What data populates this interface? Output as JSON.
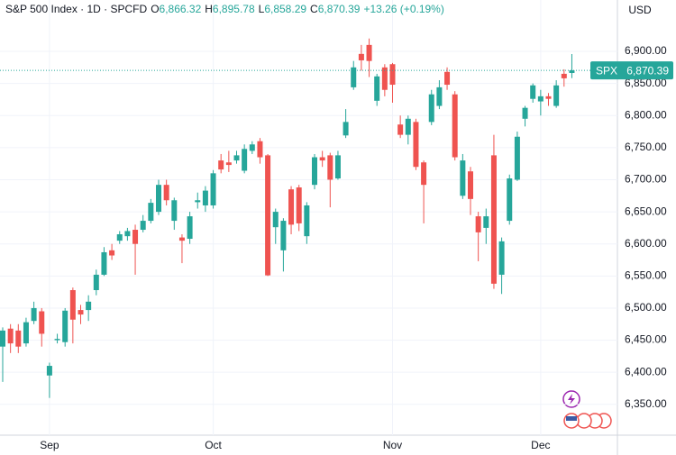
{
  "header": {
    "title": "S&P 500 Index · 1D · SPCFD",
    "fields": [
      {
        "key": "O",
        "value": "6,866.32"
      },
      {
        "key": "H",
        "value": "6,895.78"
      },
      {
        "key": "L",
        "value": "6,858.29"
      },
      {
        "key": "C",
        "value": "6,870.39"
      }
    ],
    "change": "+13.26 (+0.19%)"
  },
  "chart_data": {
    "type": "candlestick",
    "currency": "USD",
    "symbol": "SPX",
    "last_price_label": "6,870.39",
    "up_color": "#26a69a",
    "down_color": "#ef5350",
    "grid": true,
    "categories": [
      null,
      null,
      null,
      null,
      null,
      null,
      "Sep",
      null,
      null,
      null,
      null,
      null,
      null,
      null,
      null,
      null,
      null,
      null,
      null,
      null,
      null,
      null,
      null,
      null,
      null,
      null,
      null,
      "Oct",
      null,
      null,
      null,
      null,
      null,
      null,
      null,
      null,
      null,
      null,
      null,
      null,
      null,
      null,
      null,
      null,
      null,
      null,
      null,
      null,
      null,
      null,
      "Nov",
      null,
      null,
      null,
      null,
      null,
      null,
      null,
      null,
      null,
      null,
      null,
      null,
      null,
      null,
      null,
      null,
      null,
      null,
      "Dec",
      null,
      null,
      null,
      null
    ],
    "open": [
      6440,
      6468,
      6465,
      6445,
      6480,
      6495,
      6395,
      6450,
      6447,
      6528,
      6497,
      6497,
      6528,
      6552,
      6590,
      6605,
      6612,
      6622,
      6622,
      6636,
      6650,
      6692,
      6636,
      6610,
      6608,
      6665,
      6660,
      6660,
      6730,
      6727,
      6730,
      6714,
      6745,
      6760,
      6738,
      6626,
      6590,
      6685,
      6688,
      6612,
      6692,
      6735,
      6738,
      6702,
      6769,
      6844,
      6896,
      6910,
      6823,
      6875,
      6880,
      6786,
      6770,
      6790,
      6727,
      6790,
      6815,
      6868,
      6833,
      6675,
      6713,
      6643,
      6625,
      6738,
      6552,
      6636,
      6700,
      6795,
      6826,
      6822,
      6830,
      6815,
      6865,
      6866.32
    ],
    "high": [
      6470,
      6475,
      6475,
      6485,
      6510,
      6500,
      6415,
      6460,
      6500,
      6532,
      6505,
      6520,
      6560,
      6595,
      6600,
      6620,
      6625,
      6630,
      6645,
      6670,
      6700,
      6700,
      6672,
      6615,
      6650,
      6680,
      6690,
      6715,
      6740,
      6745,
      6745,
      6755,
      6760,
      6765,
      6740,
      6655,
      6640,
      6690,
      6692,
      6665,
      6740,
      6745,
      6742,
      6745,
      6810,
      6885,
      6910,
      6920,
      6865,
      6880,
      6882,
      6800,
      6800,
      6795,
      6730,
      6840,
      6855,
      6875,
      6838,
      6740,
      6720,
      6650,
      6655,
      6770,
      6610,
      6708,
      6775,
      6815,
      6850,
      6840,
      6835,
      6855,
      6872,
      6895.78
    ],
    "low": [
      6385,
      6430,
      6430,
      6440,
      6475,
      6440,
      6360,
      6445,
      6440,
      6445,
      6475,
      6480,
      6520,
      6550,
      6575,
      6600,
      6605,
      6552,
      6618,
      6632,
      6645,
      6660,
      6622,
      6570,
      6600,
      6655,
      6650,
      6655,
      6710,
      6712,
      6725,
      6710,
      6740,
      6725,
      6550,
      6600,
      6557,
      6615,
      6620,
      6600,
      6685,
      6720,
      6657,
      6700,
      6765,
      6840,
      6870,
      6860,
      6815,
      6830,
      6820,
      6765,
      6755,
      6715,
      6632,
      6785,
      6810,
      6840,
      6730,
      6670,
      6645,
      6573,
      6600,
      6530,
      6522,
      6630,
      6698,
      6783,
      6820,
      6800,
      6815,
      6812,
      6845,
      6858.29
    ],
    "close": [
      6465,
      6445,
      6440,
      6478,
      6500,
      6460,
      6410,
      6452,
      6496,
      6482,
      6490,
      6510,
      6552,
      6587,
      6582,
      6615,
      6620,
      6600,
      6636,
      6664,
      6692,
      6668,
      6668,
      6605,
      6643,
      6668,
      6683,
      6710,
      6716,
      6723,
      6738,
      6748,
      6755,
      6735,
      6551,
      6650,
      6636,
      6630,
      6632,
      6660,
      6735,
      6730,
      6700,
      6738,
      6790,
      6875,
      6886,
      6885,
      6861,
      6840,
      6848,
      6770,
      6795,
      6720,
      6692,
      6833,
      6844,
      6848,
      6735,
      6730,
      6670,
      6618,
      6643,
      6538,
      6604,
      6702,
      6767,
      6812,
      6847,
      6830,
      6826,
      6847,
      6858,
      6870.39
    ],
    "ylim": [
      6302,
      6980
    ],
    "yticks": [
      {
        "value": 6350,
        "label": "6,350.00"
      },
      {
        "value": 6400,
        "label": "6,400.00"
      },
      {
        "value": 6450,
        "label": "6,450.00"
      },
      {
        "value": 6500,
        "label": "6,500.00"
      },
      {
        "value": 6550,
        "label": "6,550.00"
      },
      {
        "value": 6600,
        "label": "6,600.00"
      },
      {
        "value": 6650,
        "label": "6,650.00"
      },
      {
        "value": 6700,
        "label": "6,700.00"
      },
      {
        "value": 6750,
        "label": "6,750.00"
      },
      {
        "value": 6800,
        "label": "6,800.00"
      },
      {
        "value": 6850,
        "label": "6,850.00"
      },
      {
        "value": 6900,
        "label": "6,900.00"
      }
    ]
  }
}
